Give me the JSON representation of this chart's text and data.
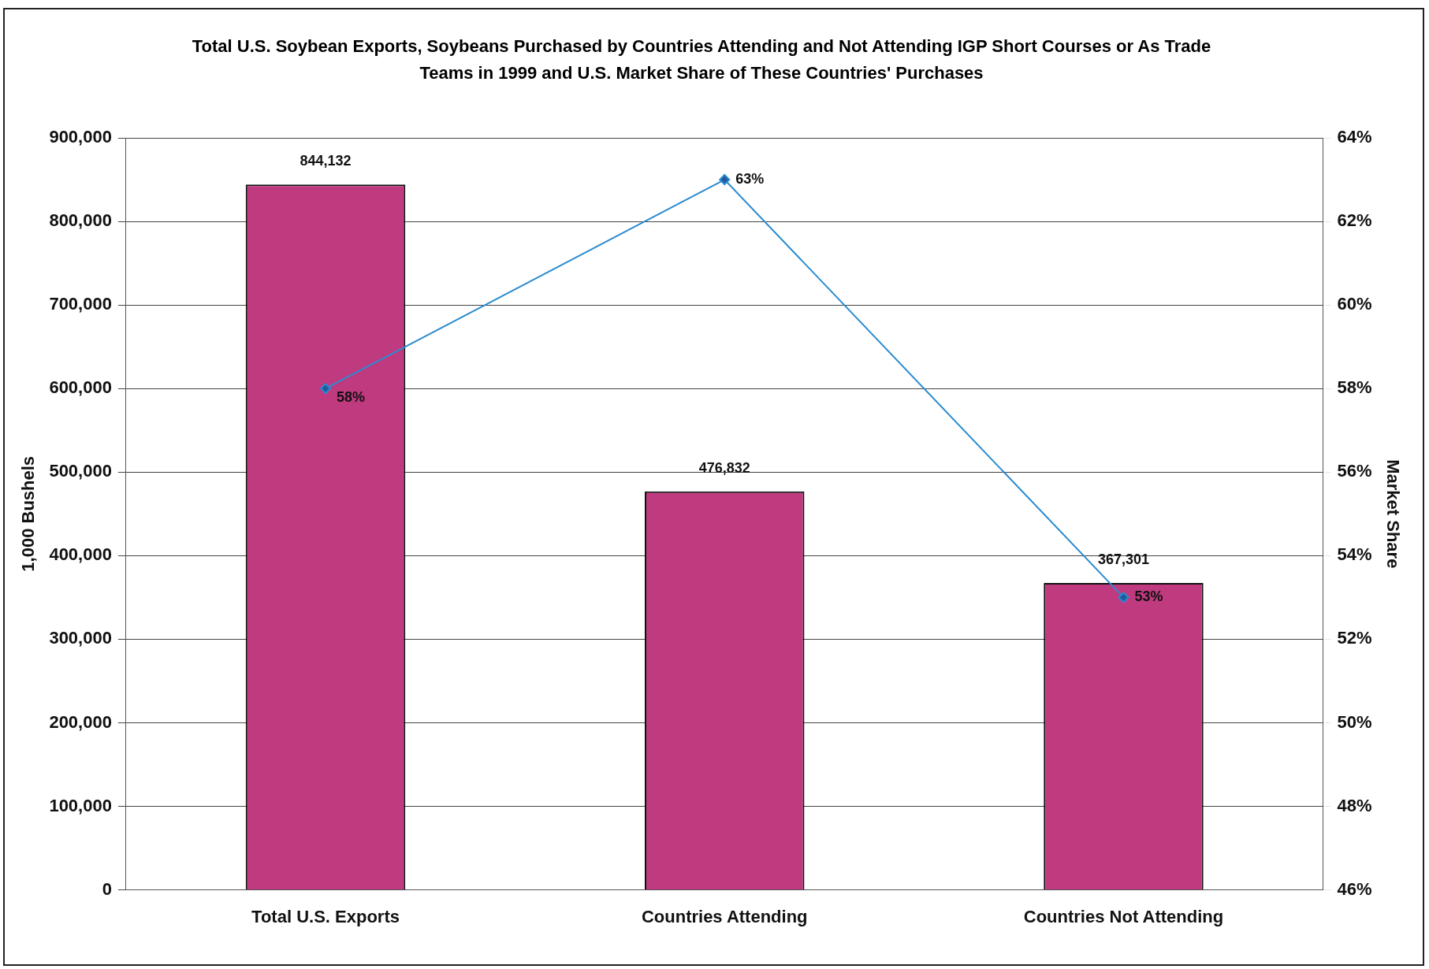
{
  "chart_data": {
    "type": "bar",
    "title": "Total U.S. Soybean Exports, Soybeans Purchased by Countries Attending and Not Attending IGP Short Courses or As Trade Teams in 1999 and U.S. Market Share of These Countries' Purchases",
    "ylabel": "1,000 Bushels",
    "y2label": "Market Share",
    "categories": [
      "Total U.S. Exports",
      "Countries Attending",
      "Countries Not Attending"
    ],
    "series": [
      {
        "color": "#c03a80",
        "values": [
          844132,
          476832,
          367301
        ],
        "value_labels": [
          "844,132",
          "476,832",
          "367,301"
        ]
      },
      {
        "type": "line",
        "axis": "y2",
        "color": "#2a8bd0",
        "values": [
          58,
          63,
          53
        ],
        "value_labels": [
          "58%",
          "63%",
          "53%"
        ],
        "marker": "diamond",
        "line_style": "solid"
      }
    ],
    "ylim": [
      0,
      900000
    ],
    "yticks": [
      {
        "value": 0,
        "label": "0"
      },
      {
        "value": 100000,
        "label": "100,000"
      },
      {
        "value": 200000,
        "label": "200,000"
      },
      {
        "value": 300000,
        "label": "300,000"
      },
      {
        "value": 400000,
        "label": "400,000"
      },
      {
        "value": 500000,
        "label": "500,000"
      },
      {
        "value": 600000,
        "label": "600,000"
      },
      {
        "value": 700000,
        "label": "700,000"
      },
      {
        "value": 800000,
        "label": "800,000"
      },
      {
        "value": 900000,
        "label": "900,000"
      }
    ],
    "y2lim": [
      46,
      64
    ],
    "y2ticks": [
      {
        "value": 46,
        "label": "46%"
      },
      {
        "value": 48,
        "label": "48%"
      },
      {
        "value": 50,
        "label": "50%"
      },
      {
        "value": 52,
        "label": "52%"
      },
      {
        "value": 54,
        "label": "54%"
      },
      {
        "value": 56,
        "label": "56%"
      },
      {
        "value": 58,
        "label": "58%"
      },
      {
        "value": 60,
        "label": "60%"
      },
      {
        "value": 62,
        "label": "62%"
      },
      {
        "value": 64,
        "label": "64%"
      }
    ],
    "grid": "y",
    "legend": false
  }
}
